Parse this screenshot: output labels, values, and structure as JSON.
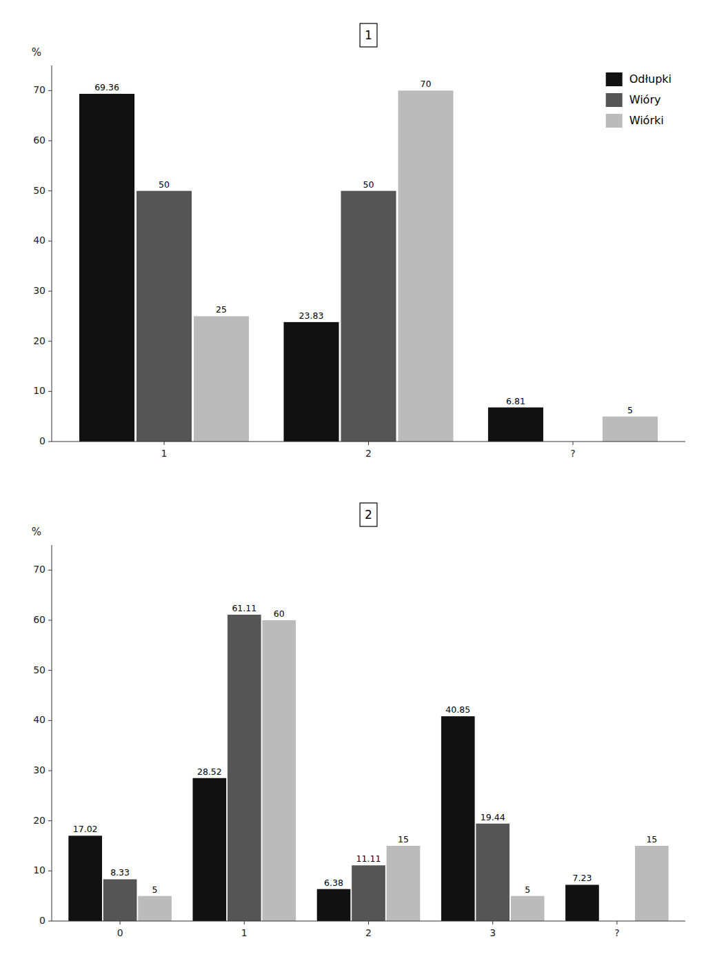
{
  "chart_data": [
    {
      "type": "bar",
      "title": "1",
      "y_label": "%",
      "categories": [
        "1",
        "2",
        "?"
      ],
      "series": [
        {
          "name": "Odłupki",
          "color": "#111111",
          "values": [
            69.36,
            23.83,
            6.81
          ]
        },
        {
          "name": "Wióry",
          "color": "#555555",
          "values": [
            50.0,
            50.0,
            null
          ]
        },
        {
          "name": "Wiórki",
          "color": "#bbbbbb",
          "values": [
            25.0,
            70.0,
            5.0
          ]
        }
      ],
      "ylim": [
        0,
        75
      ],
      "yticks": [
        0,
        10,
        20,
        30,
        40,
        50,
        60,
        70
      ],
      "data_labels": true,
      "legend": "upper right"
    },
    {
      "type": "bar",
      "title": "2",
      "y_label": "%",
      "categories": [
        "0",
        "1",
        "2",
        "3",
        "?"
      ],
      "series": [
        {
          "color": "#111111",
          "values": [
            17.02,
            28.52,
            6.38,
            40.85,
            7.23
          ]
        },
        {
          "color": "#555555",
          "values": [
            8.33,
            61.11,
            11.11,
            19.44,
            null
          ]
        },
        {
          "color": "#bbbbbb",
          "values": [
            5.0,
            60.0,
            15.0,
            5.0,
            15.0
          ]
        }
      ],
      "ylim": [
        0,
        75
      ],
      "yticks": [
        0,
        10,
        20,
        30,
        40,
        50,
        60,
        70
      ],
      "data_labels": true
    }
  ]
}
